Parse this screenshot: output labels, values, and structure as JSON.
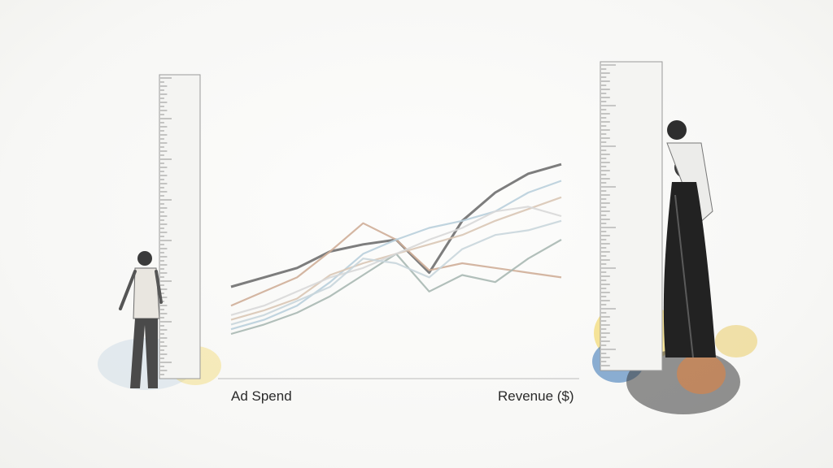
{
  "chart_data": {
    "type": "line",
    "title": "",
    "xlabel_left": "Ad Spend",
    "xlabel_right": "Revenue ($)",
    "x": [
      0,
      1,
      2,
      3,
      4,
      5,
      6,
      7,
      8,
      9,
      10
    ],
    "ylim": [
      0,
      100
    ],
    "grid": false,
    "series": [
      {
        "color": "#6f6f6f",
        "values": [
          30,
          34,
          38,
          45,
          48,
          50,
          36,
          58,
          70,
          78,
          82
        ]
      },
      {
        "color": "#cfae98",
        "values": [
          22,
          28,
          34,
          45,
          57,
          50,
          37,
          40,
          38,
          36,
          34
        ]
      },
      {
        "color": "#b9cfdc",
        "values": [
          12,
          16,
          22,
          32,
          44,
          50,
          55,
          58,
          62,
          70,
          75
        ]
      },
      {
        "color": "#d9c7b5",
        "values": [
          16,
          20,
          25,
          35,
          40,
          44,
          48,
          52,
          58,
          63,
          68
        ]
      },
      {
        "color": "#a8b8b2",
        "values": [
          10,
          14,
          19,
          26,
          35,
          44,
          28,
          35,
          32,
          42,
          50
        ]
      },
      {
        "color": "#d8d8d8",
        "values": [
          18,
          22,
          28,
          34,
          38,
          44,
          50,
          55,
          62,
          64,
          60
        ]
      },
      {
        "color": "#c9d6dc",
        "values": [
          14,
          18,
          24,
          30,
          42,
          40,
          34,
          46,
          52,
          54,
          58
        ]
      }
    ]
  },
  "illustration": {
    "left_figure": "standing-man-with-ruler",
    "right_figure": "embracing-couple-with-ruler",
    "accent_colors": [
      "#f2d14a",
      "#2f6fb3",
      "#e58d7a",
      "#5aa0c8",
      "#3a3a3a"
    ]
  }
}
